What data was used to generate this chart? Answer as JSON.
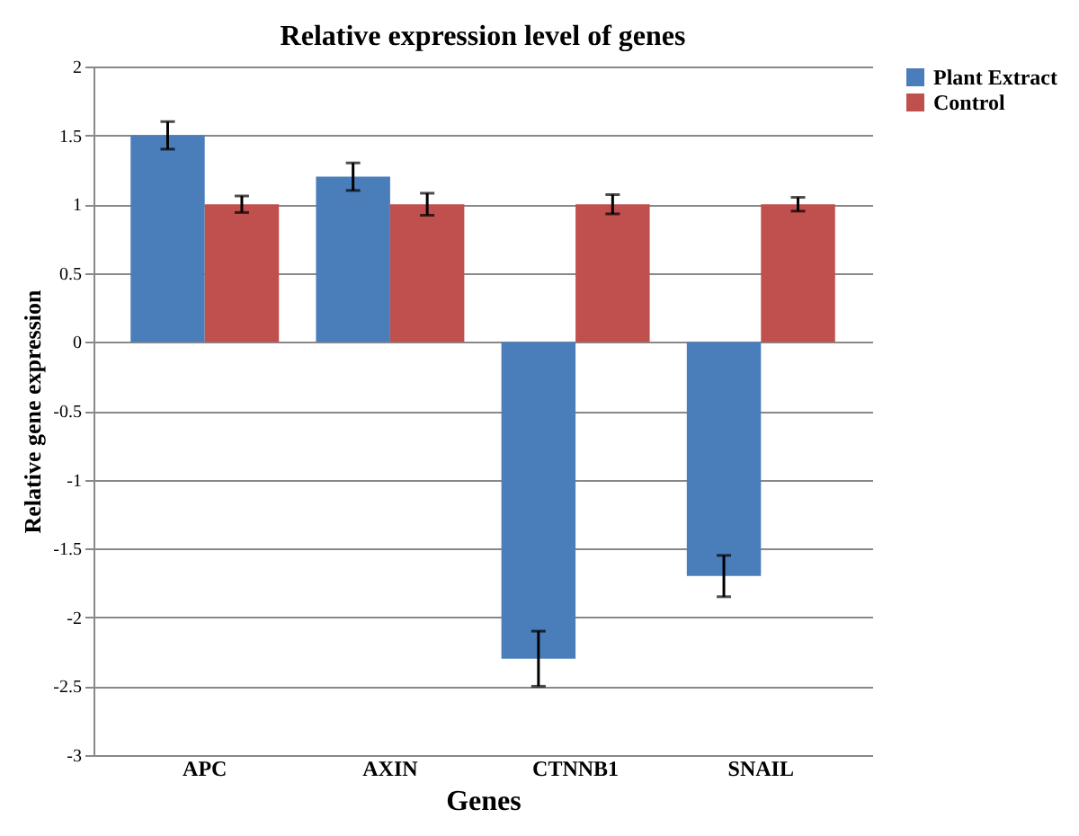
{
  "chart_data": {
    "type": "bar",
    "title": "Relative expression level of genes",
    "xlabel": "Genes",
    "ylabel": "Relative gene expression",
    "categories": [
      "APC",
      "AXIN",
      "CTNNB1",
      "SNAIL"
    ],
    "series": [
      {
        "name": "Plant Extract",
        "color": "#4a7ebb",
        "values": [
          1.5,
          1.2,
          -2.3,
          -1.7
        ],
        "errors": [
          0.1,
          0.1,
          0.2,
          0.15
        ]
      },
      {
        "name": "Control",
        "color": "#c0504d",
        "values": [
          1.0,
          1.0,
          1.0,
          1.0
        ],
        "errors": [
          0.06,
          0.08,
          0.07,
          0.05
        ]
      }
    ],
    "ylim": [
      -3,
      2
    ],
    "yticks": [
      -3,
      -2.5,
      -2,
      -1.5,
      -1,
      -0.5,
      0,
      0.5,
      1,
      1.5,
      2
    ],
    "grid": "y",
    "legend": "right"
  }
}
